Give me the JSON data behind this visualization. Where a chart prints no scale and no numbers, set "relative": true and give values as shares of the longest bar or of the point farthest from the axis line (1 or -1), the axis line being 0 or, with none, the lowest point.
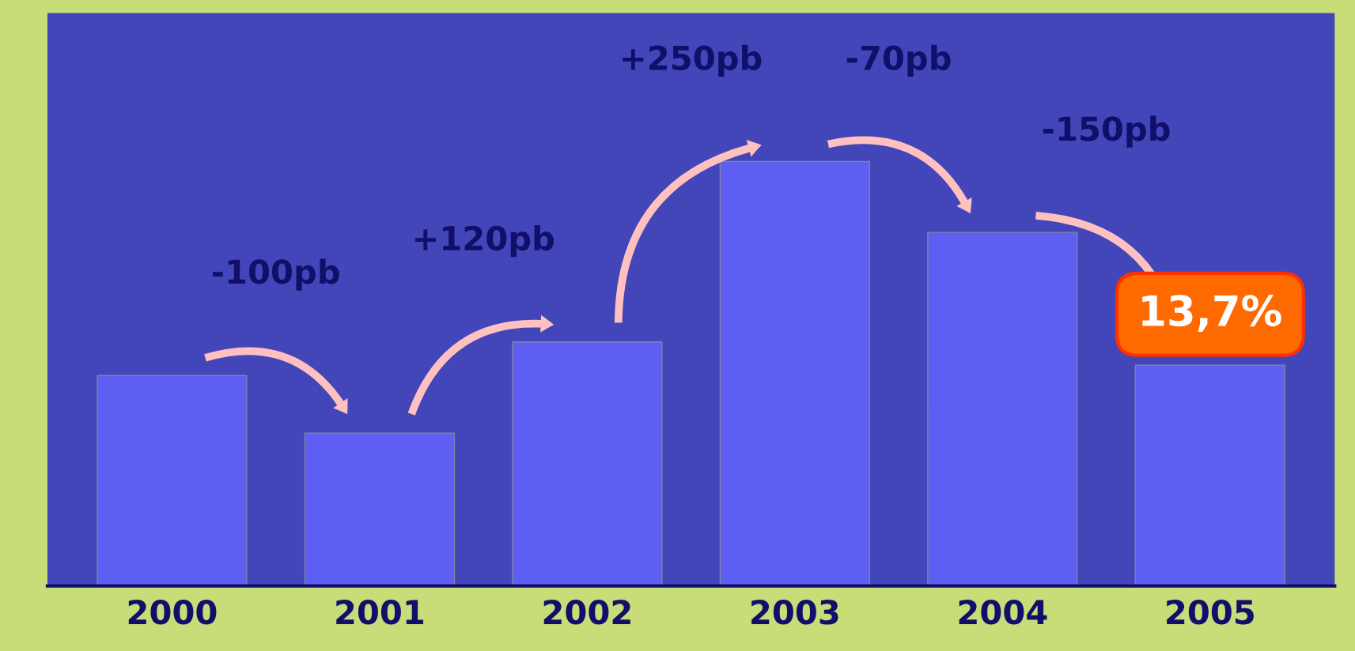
{
  "chart_data": {
    "type": "bar",
    "relative": true,
    "categories": [
      "2000",
      "2001",
      "2002",
      "2003",
      "2004",
      "2005"
    ],
    "values": [
      0.496,
      0.36,
      0.575,
      1,
      0.833,
      0.52
    ],
    "color": "#5c5ff2",
    "annotations": [
      "-100pb",
      "+120pb",
      "+250pb",
      "-70pb",
      "-150pb",
      "13,7%"
    ],
    "grid": false
  }
}
